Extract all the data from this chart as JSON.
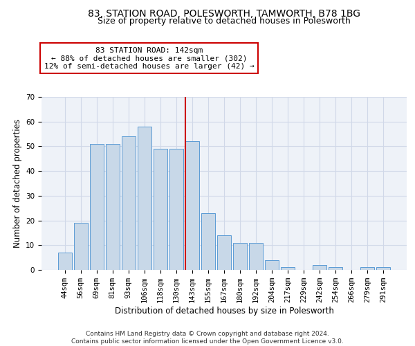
{
  "title": "83, STATION ROAD, POLESWORTH, TAMWORTH, B78 1BG",
  "subtitle": "Size of property relative to detached houses in Polesworth",
  "xlabel": "Distribution of detached houses by size in Polesworth",
  "ylabel": "Number of detached properties",
  "categories": [
    "44sqm",
    "56sqm",
    "69sqm",
    "81sqm",
    "93sqm",
    "106sqm",
    "118sqm",
    "130sqm",
    "143sqm",
    "155sqm",
    "167sqm",
    "180sqm",
    "192sqm",
    "204sqm",
    "217sqm",
    "229sqm",
    "242sqm",
    "254sqm",
    "266sqm",
    "279sqm",
    "291sqm"
  ],
  "values": [
    7,
    19,
    51,
    51,
    54,
    58,
    49,
    49,
    52,
    23,
    14,
    11,
    11,
    4,
    1,
    0,
    2,
    1,
    0,
    1,
    1
  ],
  "bar_color": "#c8d8e8",
  "bar_edge_color": "#5b9bd5",
  "ref_line_color": "#cc0000",
  "annotation_text": "83 STATION ROAD: 142sqm\n← 88% of detached houses are smaller (302)\n12% of semi-detached houses are larger (42) →",
  "annotation_box_color": "#ffffff",
  "annotation_box_edge": "#cc0000",
  "grid_color": "#d0d8e8",
  "background_color": "#eef2f8",
  "ylim": [
    0,
    70
  ],
  "yticks": [
    0,
    10,
    20,
    30,
    40,
    50,
    60,
    70
  ],
  "footer": "Contains HM Land Registry data © Crown copyright and database right 2024.\nContains public sector information licensed under the Open Government Licence v3.0.",
  "title_fontsize": 10,
  "subtitle_fontsize": 9,
  "xlabel_fontsize": 8.5,
  "ylabel_fontsize": 8.5,
  "tick_fontsize": 7.5,
  "annotation_fontsize": 8,
  "footer_fontsize": 6.5
}
